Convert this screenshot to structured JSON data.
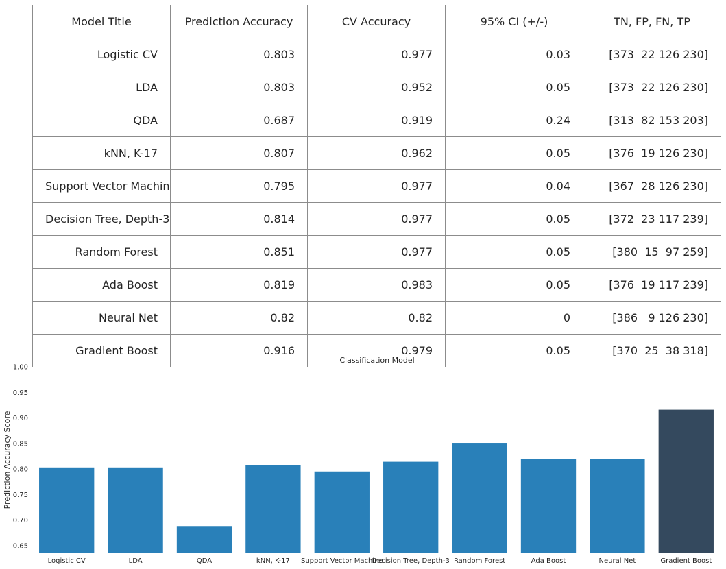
{
  "table": {
    "columns": [
      "Model Title",
      "Prediction Accuracy",
      "CV Accuracy",
      "95% CI (+/-)",
      "TN, FP, FN, TP"
    ],
    "rows": [
      [
        "Logistic CV",
        "0.803",
        "0.977",
        "0.03",
        "[373  22 126 230]"
      ],
      [
        "LDA",
        "0.803",
        "0.952",
        "0.05",
        "[373  22 126 230]"
      ],
      [
        "QDA",
        "0.687",
        "0.919",
        "0.24",
        "[313  82 153 203]"
      ],
      [
        "kNN, K-17",
        "0.807",
        "0.962",
        "0.05",
        "[376  19 126 230]"
      ],
      [
        "Support Vector Machine",
        "0.795",
        "0.977",
        "0.04",
        "[367  28 126 230]"
      ],
      [
        "Decision Tree, Depth-3",
        "0.814",
        "0.977",
        "0.05",
        "[372  23 117 239]"
      ],
      [
        "Random Forest",
        "0.851",
        "0.977",
        "0.05",
        "[380  15  97 259]"
      ],
      [
        "Ada Boost",
        "0.819",
        "0.983",
        "0.05",
        "[376  19 117 239]"
      ],
      [
        "Neural Net",
        "0.82",
        "0.82",
        "0",
        "[386   9 126 230]"
      ],
      [
        "Gradient Boost",
        "0.916",
        "0.979",
        "0.05",
        "[370  25  38 318]"
      ]
    ]
  },
  "chart_data": {
    "type": "bar",
    "xlabel": "Classification Model",
    "ylabel": "Prediction Accuracy Score",
    "categories": [
      "Logistic CV",
      "LDA",
      "QDA",
      "kNN, K-17",
      "Support Vector Machine",
      "Decision Tree, Depth-3",
      "Random Forest",
      "Ada Boost",
      "Neural Net",
      "Gradient Boost"
    ],
    "values": [
      0.803,
      0.803,
      0.687,
      0.807,
      0.795,
      0.814,
      0.851,
      0.819,
      0.82,
      0.916
    ],
    "ylim": [
      0.635,
      1.0
    ],
    "yticks": [
      "0.65",
      "0.70",
      "0.75",
      "0.80",
      "0.85",
      "0.90",
      "0.95",
      "1.00"
    ],
    "grid": false,
    "colors": {
      "default": "#2980b9",
      "highlight": "#34495e"
    },
    "highlight_category": "Gradient Boost"
  }
}
